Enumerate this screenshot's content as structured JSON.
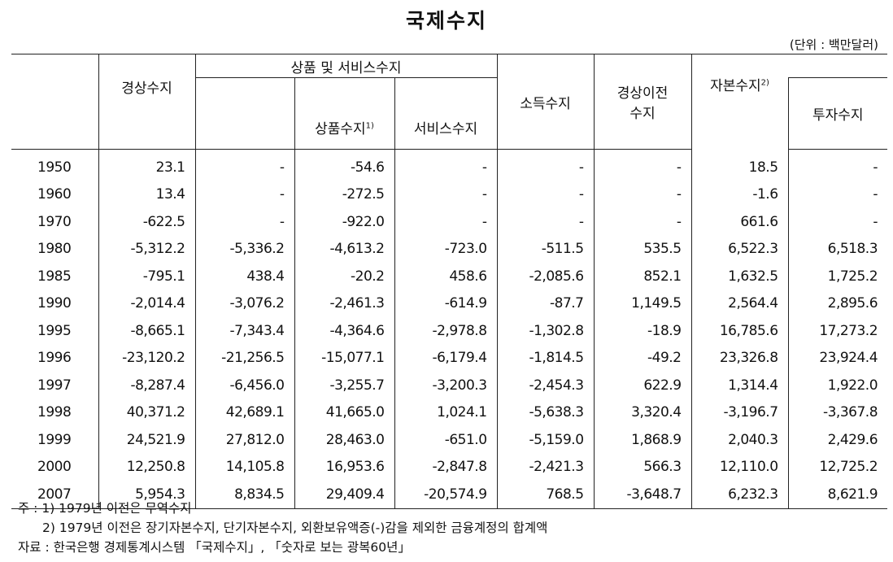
{
  "title": "국제수지",
  "unit": "(단위 : 백만달러)",
  "headers": {
    "current_account": "경상수지",
    "goods_services": "상품 및 서비스수지",
    "goods": "상품수지",
    "goods_sup": "1)",
    "services": "서비스수지",
    "income": "소득수지",
    "current_transfers_1": "경상이전",
    "current_transfers_2": "수지",
    "capital": "자본수지",
    "capital_sup": "2)",
    "investment": "투자수지"
  },
  "rows": [
    {
      "year": "1950",
      "current": "23.1",
      "gs": "-",
      "goods": "-54.6",
      "services": "-",
      "income": "-",
      "transfers": "-",
      "capital": "18.5",
      "investment": "-"
    },
    {
      "year": "1960",
      "current": "13.4",
      "gs": "-",
      "goods": "-272.5",
      "services": "-",
      "income": "-",
      "transfers": "-",
      "capital": "-1.6",
      "investment": "-"
    },
    {
      "year": "1970",
      "current": "-622.5",
      "gs": "-",
      "goods": "-922.0",
      "services": "-",
      "income": "-",
      "transfers": "-",
      "capital": "661.6",
      "investment": "-"
    },
    {
      "year": "1980",
      "current": "-5,312.2",
      "gs": "-5,336.2",
      "goods": "-4,613.2",
      "services": "-723.0",
      "income": "-511.5",
      "transfers": "535.5",
      "capital": "6,522.3",
      "investment": "6,518.3"
    },
    {
      "year": "1985",
      "current": "-795.1",
      "gs": "438.4",
      "goods": "-20.2",
      "services": "458.6",
      "income": "-2,085.6",
      "transfers": "852.1",
      "capital": "1,632.5",
      "investment": "1,725.2"
    },
    {
      "year": "1990",
      "current": "-2,014.4",
      "gs": "-3,076.2",
      "goods": "-2,461.3",
      "services": "-614.9",
      "income": "-87.7",
      "transfers": "1,149.5",
      "capital": "2,564.4",
      "investment": "2,895.6"
    },
    {
      "year": "1995",
      "current": "-8,665.1",
      "gs": "-7,343.4",
      "goods": "-4,364.6",
      "services": "-2,978.8",
      "income": "-1,302.8",
      "transfers": "-18.9",
      "capital": "16,785.6",
      "investment": "17,273.2"
    },
    {
      "year": "1996",
      "current": "-23,120.2",
      "gs": "-21,256.5",
      "goods": "-15,077.1",
      "services": "-6,179.4",
      "income": "-1,814.5",
      "transfers": "-49.2",
      "capital": "23,326.8",
      "investment": "23,924.4"
    },
    {
      "year": "1997",
      "current": "-8,287.4",
      "gs": "-6,456.0",
      "goods": "-3,255.7",
      "services": "-3,200.3",
      "income": "-2,454.3",
      "transfers": "622.9",
      "capital": "1,314.4",
      "investment": "1,922.0"
    },
    {
      "year": "1998",
      "current": "40,371.2",
      "gs": "42,689.1",
      "goods": "41,665.0",
      "services": "1,024.1",
      "income": "-5,638.3",
      "transfers": "3,320.4",
      "capital": "-3,196.7",
      "investment": "-3,367.8"
    },
    {
      "year": "1999",
      "current": "24,521.9",
      "gs": "27,812.0",
      "goods": "28,463.0",
      "services": "-651.0",
      "income": "-5,159.0",
      "transfers": "1,868.9",
      "capital": "2,040.3",
      "investment": "2,429.6"
    },
    {
      "year": "2000",
      "current": "12,250.8",
      "gs": "14,105.8",
      "goods": "16,953.6",
      "services": "-2,847.8",
      "income": "-2,421.3",
      "transfers": "566.3",
      "capital": "12,110.0",
      "investment": "12,725.2"
    },
    {
      "year": "2007",
      "current": "5,954.3",
      "gs": "8,834.5",
      "goods": "29,409.4",
      "services": "-20,574.9",
      "income": "768.5",
      "transfers": "-3,648.7",
      "capital": "6,232.3",
      "investment": "8,621.9"
    }
  ],
  "notes": {
    "note1": "주 : 1) 1979년 이전은  무역수지",
    "note2": "2) 1979년 이전은 장기자본수지, 단기자본수지,  외환보유액증(-)감을 제외한 금융계정의 합계액",
    "source": "자료 : 한국은행 경제통계시스템  「국제수지」, 「숫자로 보는 광복60년」"
  }
}
